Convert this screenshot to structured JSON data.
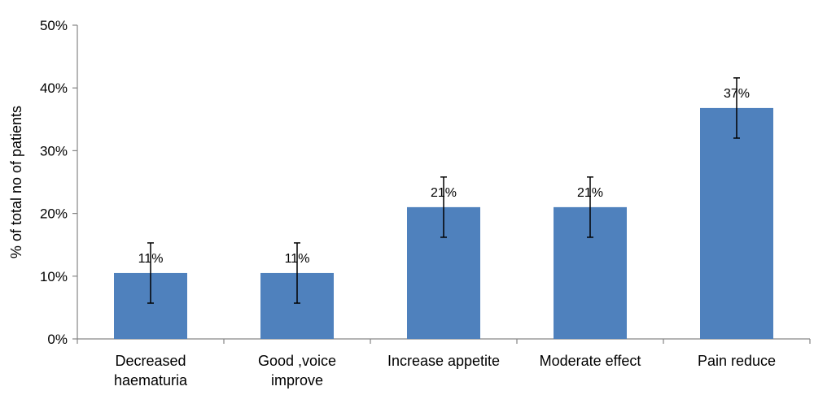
{
  "chart_data": {
    "type": "bar",
    "title": "",
    "xlabel": "",
    "ylabel": "% of total no of patients",
    "ylim": [
      0,
      50
    ],
    "y_ticks": [
      "0%",
      "10%",
      "20%",
      "30%",
      "40%",
      "50%"
    ],
    "categories": [
      [
        "Decreased",
        "haematuria"
      ],
      [
        "Good ,voice",
        "improve"
      ],
      [
        "Increase appetite"
      ],
      [
        "Moderate effect"
      ],
      [
        "Pain reduce"
      ]
    ],
    "values": [
      10.5,
      10.5,
      21,
      21,
      36.8
    ],
    "data_labels": [
      "11%",
      "11%",
      "21%",
      "21%",
      "37%"
    ],
    "error_bars": [
      {
        "low": 5.7,
        "high": 15.3
      },
      {
        "low": 5.7,
        "high": 15.3
      },
      {
        "low": 16.2,
        "high": 25.8
      },
      {
        "low": 16.2,
        "high": 25.8
      },
      {
        "low": 32.0,
        "high": 41.6
      }
    ],
    "bar_color": "#4F81BD",
    "grid": false,
    "legend": "none"
  }
}
